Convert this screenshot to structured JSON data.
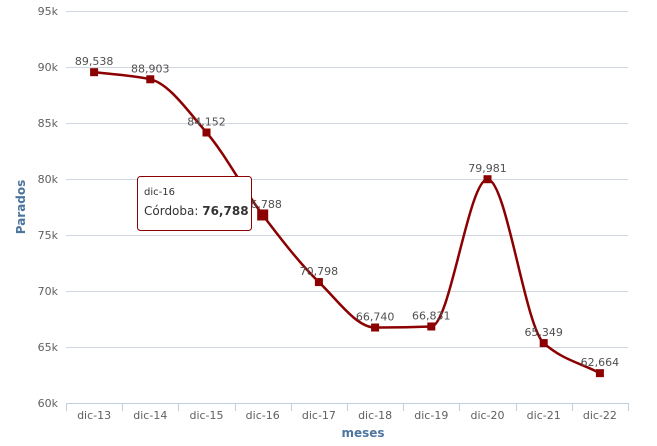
{
  "chart_data": {
    "type": "line",
    "xlabel": "meses",
    "ylabel": "Parados",
    "categories": [
      "dic-13",
      "dic-14",
      "dic-15",
      "dic-16",
      "dic-17",
      "dic-18",
      "dic-19",
      "dic-20",
      "dic-21",
      "dic-22"
    ],
    "series": [
      {
        "name": "Córdoba",
        "values": [
          89538,
          88903,
          84152,
          76788,
          70798,
          66740,
          66831,
          79981,
          65349,
          62664
        ],
        "data_labels": [
          "89,538",
          "88,903",
          "84,152",
          "76,788",
          "70,798",
          "66,740",
          "66,831",
          "79,981",
          "65,349",
          "62,664"
        ],
        "color": "#8b0000"
      }
    ],
    "ylim": [
      60000,
      95000
    ],
    "yticks": [
      60000,
      65000,
      70000,
      75000,
      80000,
      85000,
      90000,
      95000
    ],
    "ytick_labels": [
      "60k",
      "65k",
      "70k",
      "75k",
      "80k",
      "85k",
      "90k",
      "95k"
    ],
    "grid": true,
    "tooltip": {
      "header": "dic-16",
      "series_label": "Córdoba: ",
      "value": "76,788",
      "point_index": 3
    }
  }
}
